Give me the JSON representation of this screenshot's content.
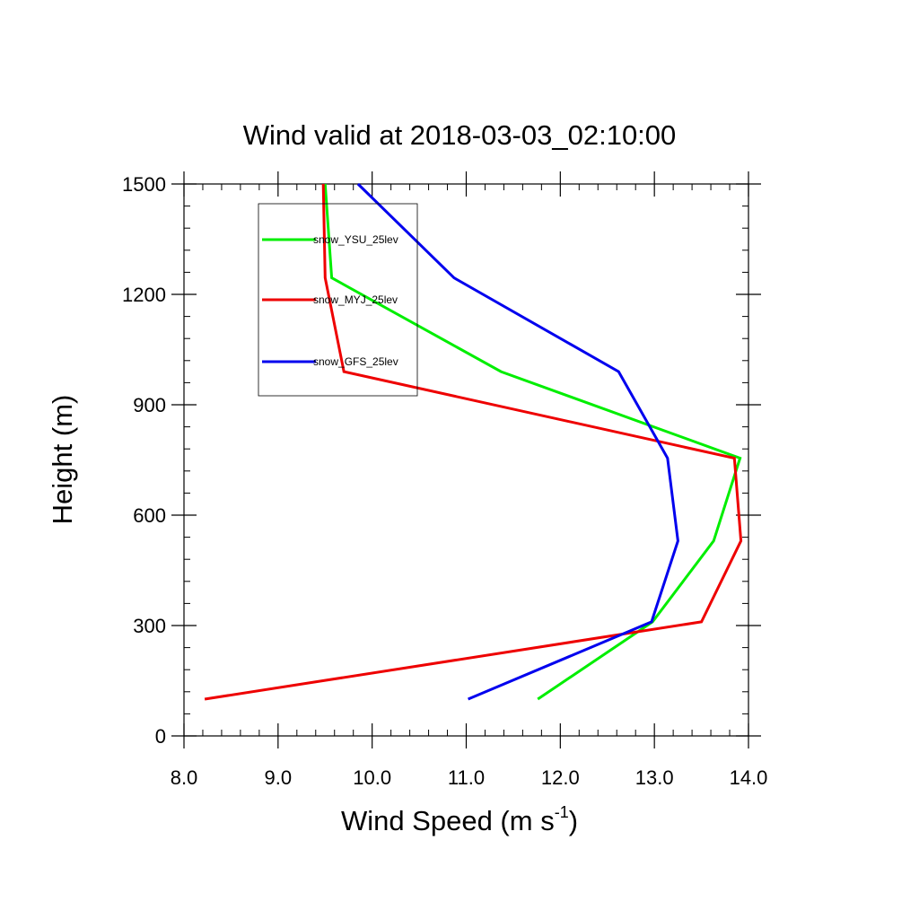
{
  "chart_data": {
    "type": "line",
    "title": "Wind valid at 2018-03-03_02:10:00",
    "xlabel": "Wind Speed (m s",
    "xlabel_superscript": "-1",
    "xlabel_suffix": ")",
    "ylabel": "Height (m)",
    "xlim": [
      8.0,
      14.0
    ],
    "ylim": [
      0,
      1500
    ],
    "x_ticks": [
      "8.0",
      "9.0",
      "10.0",
      "11.0",
      "12.0",
      "13.0",
      "14.0"
    ],
    "y_ticks": [
      "0",
      "300",
      "600",
      "900",
      "1200",
      "1500"
    ],
    "grid": false,
    "legend_position": "top-left",
    "series": [
      {
        "name": "snow_YSU_25lev",
        "color": "#00ee00",
        "x": [
          11.76,
          12.98,
          13.63,
          13.91,
          11.37,
          9.57,
          9.5
        ],
        "y": [
          100,
          310,
          530,
          755,
          990,
          1245,
          1500
        ]
      },
      {
        "name": "snow_MYJ_25lev",
        "color": "#ee0000",
        "x": [
          8.22,
          13.5,
          13.92,
          13.85,
          9.7,
          9.5,
          9.48
        ],
        "y": [
          100,
          310,
          530,
          755,
          990,
          1245,
          1500
        ]
      },
      {
        "name": "snow_GFS_25lev",
        "color": "#0000ee",
        "x": [
          11.02,
          12.97,
          13.25,
          13.14,
          12.62,
          10.87,
          9.85
        ],
        "y": [
          100,
          310,
          530,
          755,
          990,
          1245,
          1500
        ]
      }
    ]
  }
}
